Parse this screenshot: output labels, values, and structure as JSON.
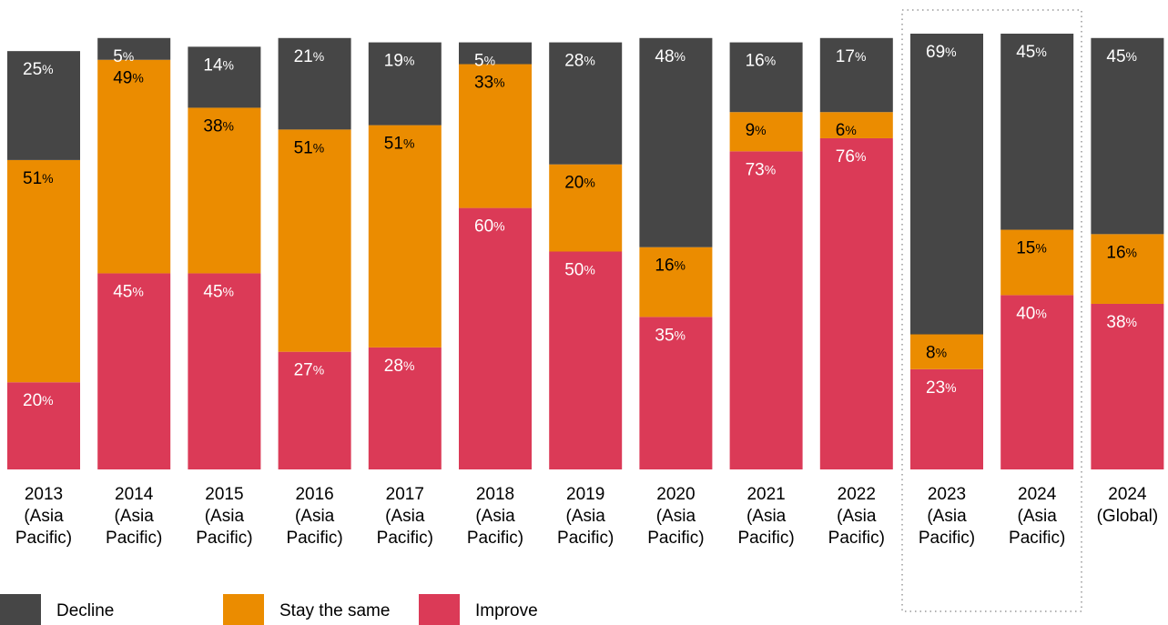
{
  "chart_data": {
    "type": "stacked_bar",
    "categories": [
      "2013 (Asia Pacific)",
      "2014 (Asia Pacific)",
      "2015 (Asia Pacific)",
      "2016 (Asia Pacific)",
      "2017 (Asia Pacific)",
      "2018 (Asia Pacific)",
      "2019 (Asia Pacific)",
      "2020 (Asia Pacific)",
      "2021 (Asia Pacific)",
      "2022 (Asia Pacific)",
      "2023 (Asia Pacific)",
      "2024 (Asia Pacific)",
      "2024 (Global)"
    ],
    "ylim": [
      0,
      100
    ],
    "series": [
      {
        "name": "Improve",
        "color": "#db3a57",
        "text_color": "#ffffff",
        "values": [
          20,
          45,
          45,
          27,
          28,
          60,
          50,
          35,
          73,
          76,
          23,
          40,
          38
        ],
        "value_labels": [
          "20%",
          "45%",
          "45%",
          "27%",
          "28%",
          "60%",
          "50%",
          "35%",
          "73%",
          "76%",
          "23%",
          "40%",
          "38%"
        ]
      },
      {
        "name": "Stay the same",
        "color": "#eb8c00",
        "text_color": "#000000",
        "values": [
          51,
          49,
          38,
          51,
          51,
          33,
          20,
          16,
          9,
          6,
          8,
          15,
          16
        ],
        "value_labels": [
          "51%",
          "49%",
          "38%",
          "51%",
          "51%",
          "33%",
          "20%",
          "16%",
          "9%",
          "6%",
          "8%",
          "15%",
          "16%"
        ]
      },
      {
        "name": "Decline",
        "color": "#464646",
        "text_color": "#ffffff",
        "values": [
          25,
          5,
          14,
          21,
          19,
          5,
          28,
          48,
          16,
          17,
          69,
          45,
          45
        ],
        "value_labels": [
          "25%",
          "5%",
          "14%",
          "21%",
          "19%",
          "5%",
          "28%",
          "48%",
          "16%",
          "17%",
          "69%",
          "45%",
          "45%"
        ]
      }
    ],
    "legend_order": [
      2,
      1,
      0
    ]
  }
}
